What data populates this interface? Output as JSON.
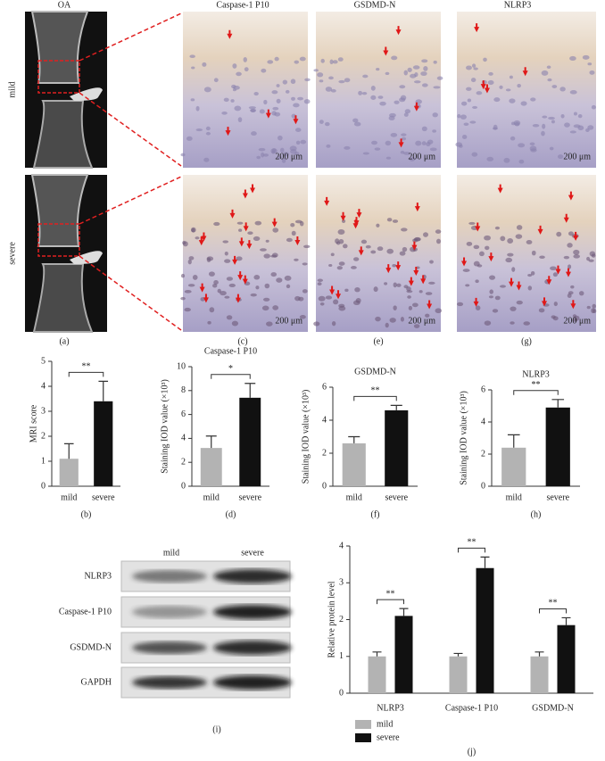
{
  "images": {
    "columns": [
      "OA",
      "Caspase-1 P10",
      "GSDMD-N",
      "NLRP3"
    ],
    "rows": [
      "mild",
      "severe"
    ],
    "panel_labels": [
      "(a)",
      "(c)",
      "(e)",
      "(g)"
    ],
    "scale_bar": "200 μm"
  },
  "blot": {
    "columns": [
      "mild",
      "severe"
    ],
    "rows": [
      "NLRP3",
      "Caspase-1 P10",
      "GSDMD-N",
      "GAPDH"
    ],
    "panel_label": "(i)"
  },
  "chart_data": [
    {
      "type": "bar",
      "panel_label": "(b)",
      "y_label": "MRI score",
      "categories": [
        "mild",
        "severe"
      ],
      "values": [
        1.1,
        3.4
      ],
      "errors": [
        0.6,
        0.8
      ],
      "colors": [
        "#b3b3b3",
        "#111111"
      ],
      "significance": "**",
      "ylim": [
        0,
        5
      ],
      "yticks": [
        0,
        1,
        2,
        3,
        4,
        5
      ]
    },
    {
      "type": "bar",
      "title": "Caspase-1 P10",
      "panel_label": "(d)",
      "y_label": "Staining IOD value (×10³)",
      "categories": [
        "mild",
        "severe"
      ],
      "values": [
        3.2,
        7.4
      ],
      "errors": [
        1.0,
        1.2
      ],
      "colors": [
        "#b3b3b3",
        "#111111"
      ],
      "significance": "*",
      "ylim": [
        0,
        10
      ],
      "yticks": [
        0,
        2,
        4,
        6,
        8,
        10
      ]
    },
    {
      "type": "bar",
      "title": "GSDMD-N",
      "panel_label": "(f)",
      "y_label": "Staining IOD value (×10³)",
      "categories": [
        "mild",
        "severe"
      ],
      "values": [
        2.6,
        4.6
      ],
      "errors": [
        0.4,
        0.3
      ],
      "colors": [
        "#b3b3b3",
        "#111111"
      ],
      "significance": "**",
      "ylim": [
        0,
        6
      ],
      "yticks": [
        0,
        2,
        4,
        6
      ]
    },
    {
      "type": "bar",
      "title": "NLRP3",
      "panel_label": "(h)",
      "y_label": "Staining IOD value (×10³)",
      "categories": [
        "mild",
        "severe"
      ],
      "values": [
        2.4,
        4.9
      ],
      "errors": [
        0.8,
        0.5
      ],
      "colors": [
        "#b3b3b3",
        "#111111"
      ],
      "significance": "**",
      "ylim": [
        0,
        6
      ],
      "yticks": [
        0,
        2,
        4,
        6
      ]
    },
    {
      "type": "grouped-bar",
      "panel_label": "(j)",
      "y_label": "Relative protein level",
      "categories": [
        "NLRP3",
        "Caspase-1 P10",
        "GSDMD-N"
      ],
      "series": [
        {
          "name": "mild",
          "color": "#b3b3b3",
          "values": [
            1.0,
            1.0,
            1.0
          ],
          "errors": [
            0.12,
            0.08,
            0.12
          ]
        },
        {
          "name": "severe",
          "color": "#111111",
          "values": [
            2.1,
            3.4,
            1.85
          ],
          "errors": [
            0.2,
            0.3,
            0.2
          ]
        }
      ],
      "significance": [
        "**",
        "**",
        "**"
      ],
      "legend": "bottom-left",
      "ylim": [
        0,
        4
      ],
      "yticks": [
        0,
        1,
        2,
        3,
        4
      ]
    }
  ]
}
